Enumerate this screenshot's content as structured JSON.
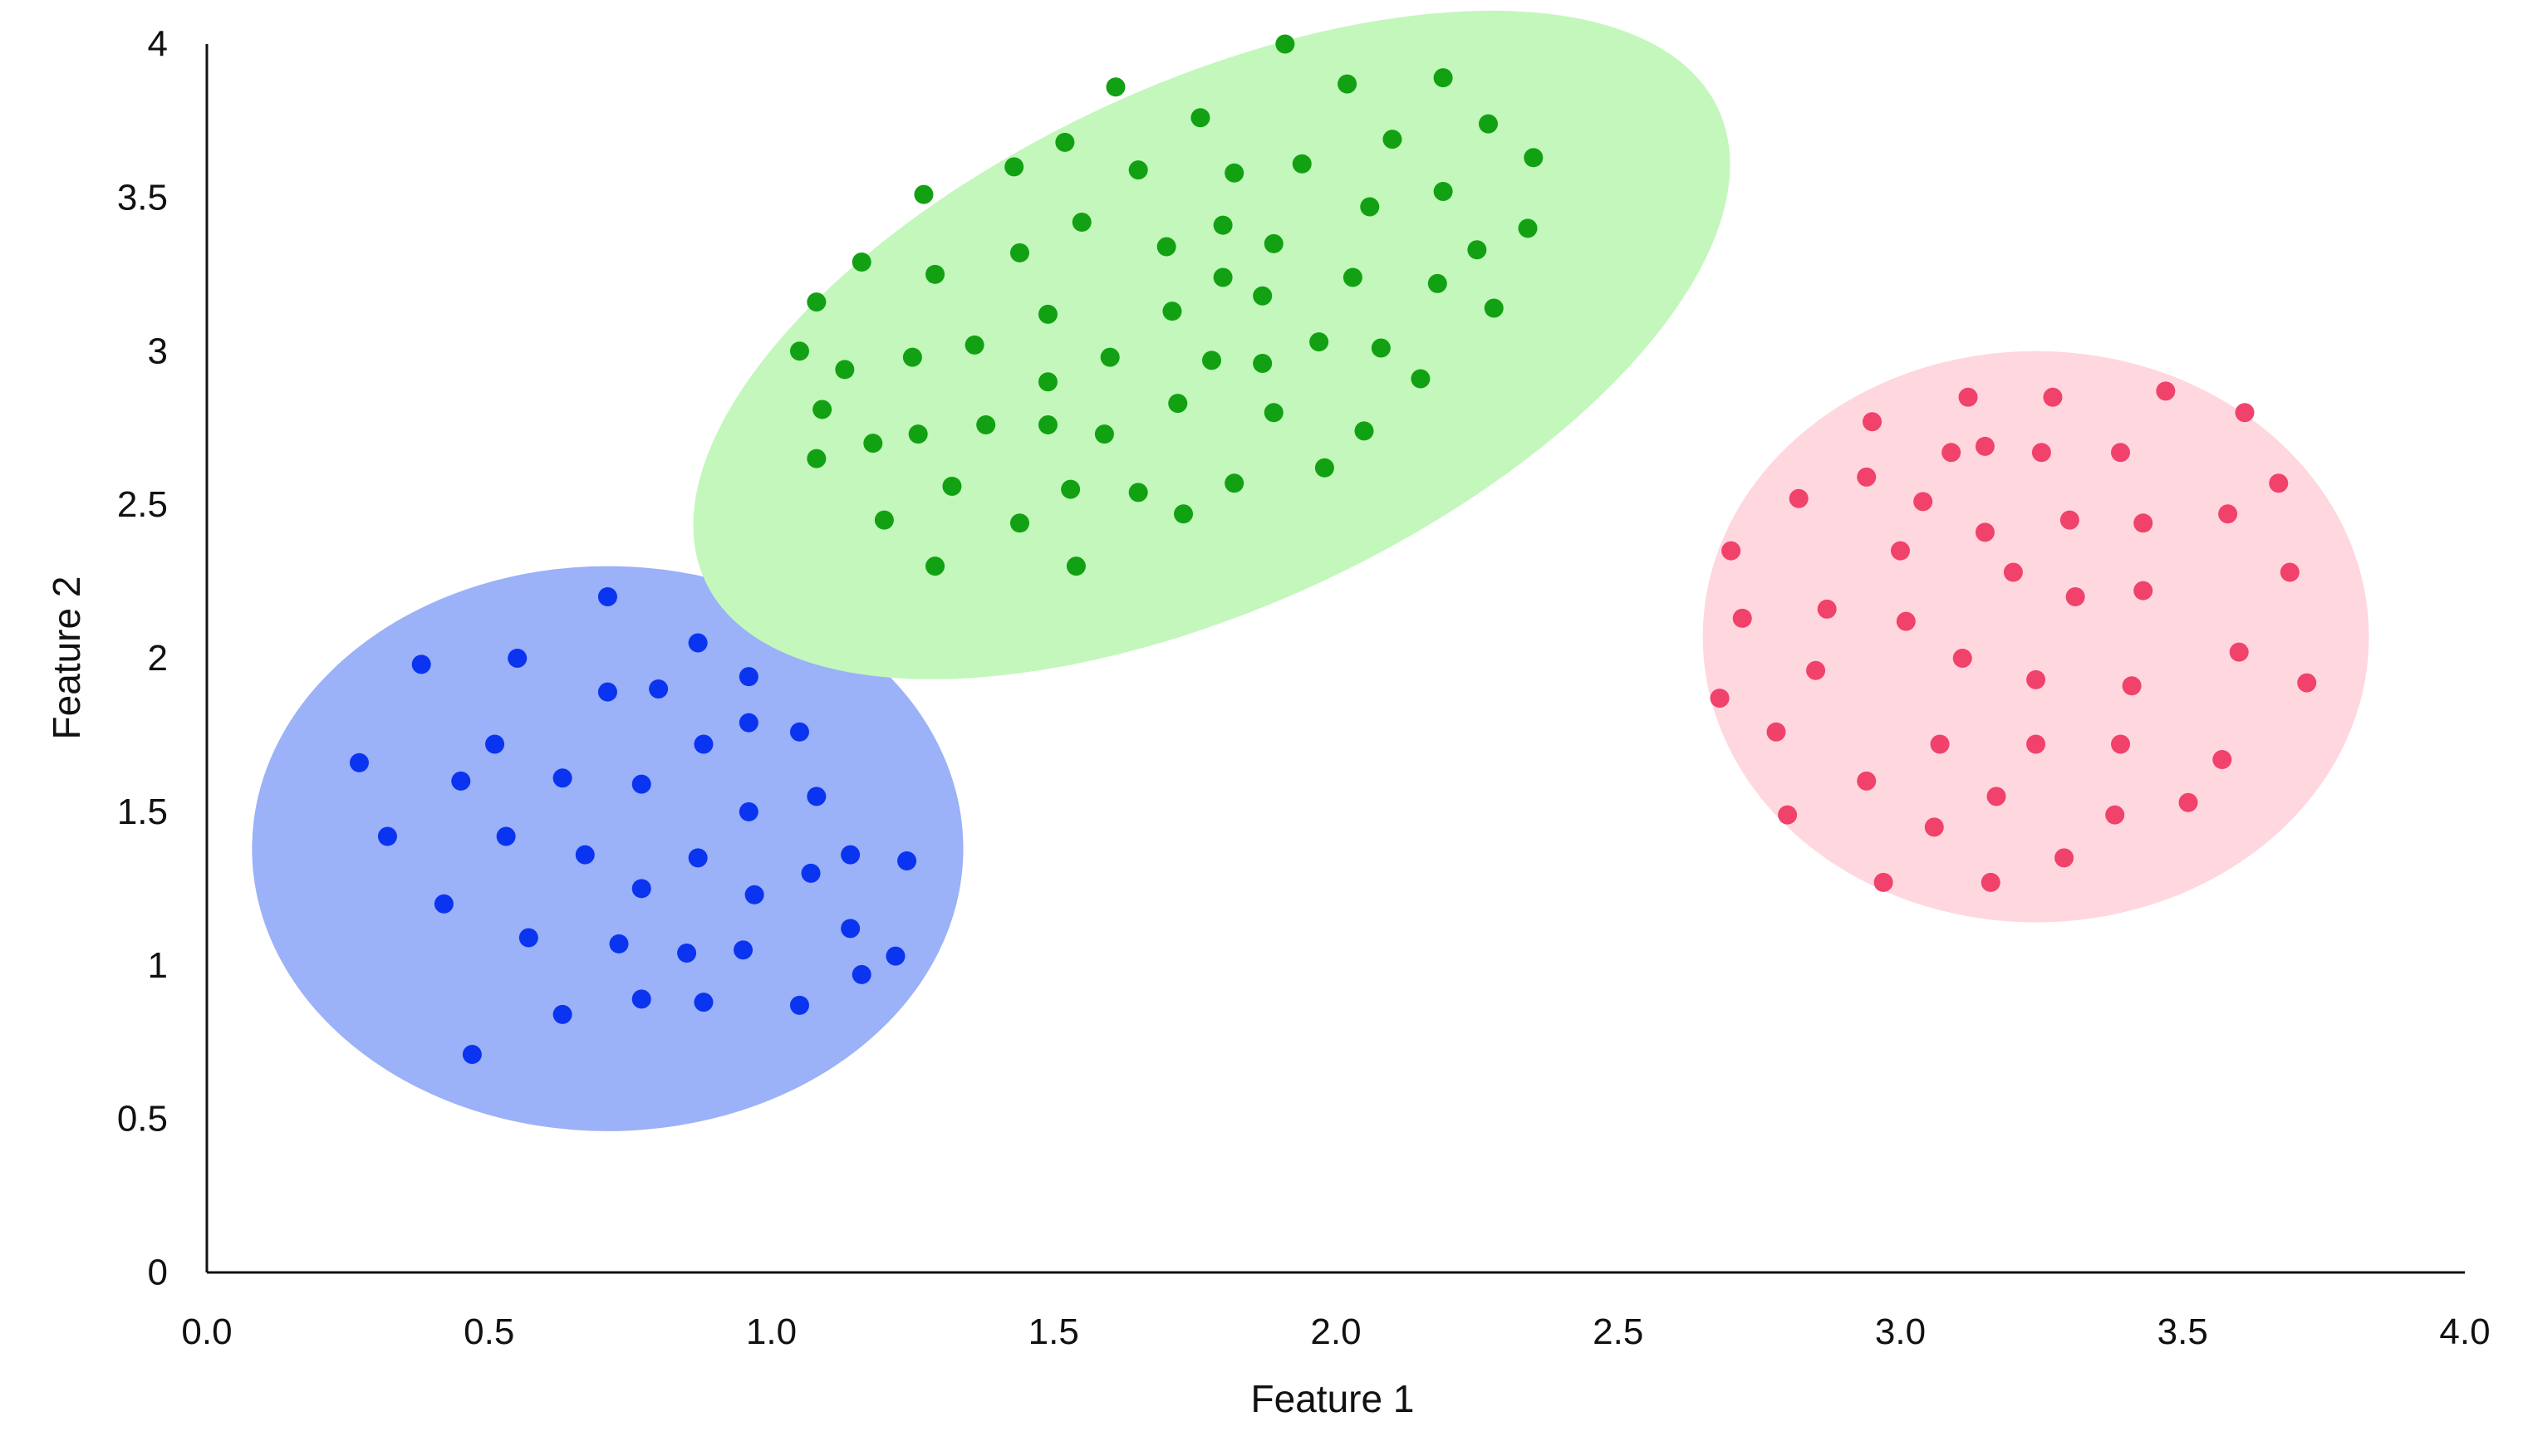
{
  "chart_data": {
    "type": "scatter",
    "title": "",
    "xlabel": "Feature 1",
    "ylabel": "Feature 2",
    "xlim": [
      0,
      4
    ],
    "ylim": [
      0,
      4
    ],
    "x_ticks": [
      "0.0",
      "0.5",
      "1.0",
      "1.5",
      "2.0",
      "2.5",
      "3.0",
      "3.5",
      "4.0"
    ],
    "y_ticks": [
      "0",
      "0.5",
      "1",
      "1.5",
      "2",
      "2.5",
      "3",
      "3.5",
      "4"
    ],
    "grid": false,
    "legend": "none",
    "series": [
      {
        "color": "#0a34f0",
        "region_color": "#9bb1f8",
        "region": {
          "cx": 0.71,
          "cy": 1.38,
          "rx": 0.63,
          "ry": 0.92,
          "angle": 0
        },
        "points": [
          [
            0.27,
            1.66
          ],
          [
            0.32,
            1.42
          ],
          [
            0.38,
            1.98
          ],
          [
            0.42,
            1.2
          ],
          [
            0.45,
            1.6
          ],
          [
            0.47,
            0.71
          ],
          [
            0.51,
            1.72
          ],
          [
            0.53,
            1.42
          ],
          [
            0.55,
            2.0
          ],
          [
            0.57,
            1.09
          ],
          [
            0.63,
            1.61
          ],
          [
            0.63,
            0.84
          ],
          [
            0.67,
            1.36
          ],
          [
            0.71,
            2.2
          ],
          [
            0.71,
            1.89
          ],
          [
            0.73,
            1.07
          ],
          [
            0.77,
            1.59
          ],
          [
            0.77,
            1.25
          ],
          [
            0.77,
            0.89
          ],
          [
            0.8,
            1.9
          ],
          [
            0.85,
            1.04
          ],
          [
            0.87,
            1.35
          ],
          [
            0.87,
            2.05
          ],
          [
            0.88,
            1.72
          ],
          [
            0.88,
            0.88
          ],
          [
            0.95,
            1.05
          ],
          [
            0.96,
            1.5
          ],
          [
            0.96,
            1.94
          ],
          [
            0.96,
            1.79
          ],
          [
            0.97,
            1.23
          ],
          [
            1.05,
            1.76
          ],
          [
            1.05,
            0.87
          ],
          [
            1.07,
            1.3
          ],
          [
            1.08,
            1.55
          ],
          [
            1.14,
            1.36
          ],
          [
            1.14,
            1.12
          ],
          [
            1.16,
            0.97
          ],
          [
            1.22,
            1.03
          ],
          [
            1.24,
            1.34
          ]
        ]
      },
      {
        "color": "#12a112",
        "region_color": "#c3f7bc",
        "region": {
          "cx": 1.78,
          "cy": 3.02,
          "rx": 0.99,
          "ry": 0.85,
          "angle": -25
        },
        "points": [
          [
            1.05,
            3.0
          ],
          [
            1.08,
            3.16
          ],
          [
            1.08,
            2.65
          ],
          [
            1.09,
            2.81
          ],
          [
            1.13,
            2.94
          ],
          [
            1.16,
            3.29
          ],
          [
            1.18,
            2.7
          ],
          [
            1.2,
            2.45
          ],
          [
            1.25,
            2.98
          ],
          [
            1.26,
            2.73
          ],
          [
            1.27,
            3.51
          ],
          [
            1.29,
            3.25
          ],
          [
            1.29,
            2.3
          ],
          [
            1.32,
            2.56
          ],
          [
            1.36,
            3.02
          ],
          [
            1.38,
            2.76
          ],
          [
            1.43,
            3.6
          ],
          [
            1.44,
            3.32
          ],
          [
            1.44,
            2.44
          ],
          [
            1.49,
            3.12
          ],
          [
            1.49,
            2.9
          ],
          [
            1.49,
            2.76
          ],
          [
            1.52,
            3.68
          ],
          [
            1.53,
            2.55
          ],
          [
            1.54,
            2.3
          ],
          [
            1.55,
            3.42
          ],
          [
            1.59,
            2.73
          ],
          [
            1.6,
            2.98
          ],
          [
            1.61,
            3.86
          ],
          [
            1.65,
            3.59
          ],
          [
            1.65,
            2.54
          ],
          [
            1.7,
            3.34
          ],
          [
            1.71,
            3.13
          ],
          [
            1.72,
            2.83
          ],
          [
            1.73,
            2.47
          ],
          [
            1.76,
            3.76
          ],
          [
            1.78,
            2.97
          ],
          [
            1.8,
            3.41
          ],
          [
            1.8,
            3.24
          ],
          [
            1.82,
            3.58
          ],
          [
            1.82,
            2.57
          ],
          [
            1.87,
            3.18
          ],
          [
            1.87,
            2.96
          ],
          [
            1.89,
            3.35
          ],
          [
            1.89,
            2.8
          ],
          [
            1.91,
            4.0
          ],
          [
            1.94,
            3.61
          ],
          [
            1.97,
            3.03
          ],
          [
            1.98,
            2.62
          ],
          [
            2.02,
            3.87
          ],
          [
            2.03,
            3.24
          ],
          [
            2.05,
            2.74
          ],
          [
            2.06,
            3.47
          ],
          [
            2.08,
            3.01
          ],
          [
            2.1,
            3.69
          ],
          [
            2.15,
            2.91
          ],
          [
            2.18,
            3.22
          ],
          [
            2.19,
            3.89
          ],
          [
            2.19,
            3.52
          ],
          [
            2.25,
            3.33
          ],
          [
            2.27,
            3.74
          ],
          [
            2.28,
            3.14
          ],
          [
            2.34,
            3.4
          ],
          [
            2.35,
            3.63
          ]
        ]
      },
      {
        "color": "#f0426b",
        "region_color": "#fed7df",
        "region": {
          "cx": 3.24,
          "cy": 2.07,
          "rx": 0.59,
          "ry": 0.93,
          "angle": 0
        },
        "points": [
          [
            2.68,
            1.87
          ],
          [
            2.7,
            2.35
          ],
          [
            2.72,
            2.13
          ],
          [
            2.78,
            1.76
          ],
          [
            2.8,
            1.49
          ],
          [
            2.82,
            2.52
          ],
          [
            2.85,
            1.96
          ],
          [
            2.87,
            2.16
          ],
          [
            2.94,
            2.59
          ],
          [
            2.94,
            1.6
          ],
          [
            2.95,
            2.77
          ],
          [
            2.97,
            1.27
          ],
          [
            3.0,
            2.35
          ],
          [
            3.01,
            2.12
          ],
          [
            3.04,
            2.51
          ],
          [
            3.06,
            1.45
          ],
          [
            3.07,
            1.72
          ],
          [
            3.09,
            2.67
          ],
          [
            3.11,
            2.0
          ],
          [
            3.12,
            2.85
          ],
          [
            3.15,
            2.69
          ],
          [
            3.15,
            2.41
          ],
          [
            3.16,
            1.27
          ],
          [
            3.17,
            1.55
          ],
          [
            3.2,
            2.28
          ],
          [
            3.24,
            1.93
          ],
          [
            3.24,
            1.72
          ],
          [
            3.25,
            2.67
          ],
          [
            3.27,
            2.85
          ],
          [
            3.29,
            1.35
          ],
          [
            3.3,
            2.45
          ],
          [
            3.31,
            2.2
          ],
          [
            3.38,
            1.49
          ],
          [
            3.39,
            2.67
          ],
          [
            3.39,
            1.72
          ],
          [
            3.41,
            1.91
          ],
          [
            3.43,
            2.44
          ],
          [
            3.43,
            2.22
          ],
          [
            3.47,
            2.87
          ],
          [
            3.51,
            1.53
          ],
          [
            3.57,
            1.67
          ],
          [
            3.58,
            2.47
          ],
          [
            3.6,
            2.02
          ],
          [
            3.61,
            2.8
          ],
          [
            3.67,
            2.57
          ],
          [
            3.69,
            2.28
          ],
          [
            3.72,
            1.92
          ]
        ]
      }
    ]
  }
}
